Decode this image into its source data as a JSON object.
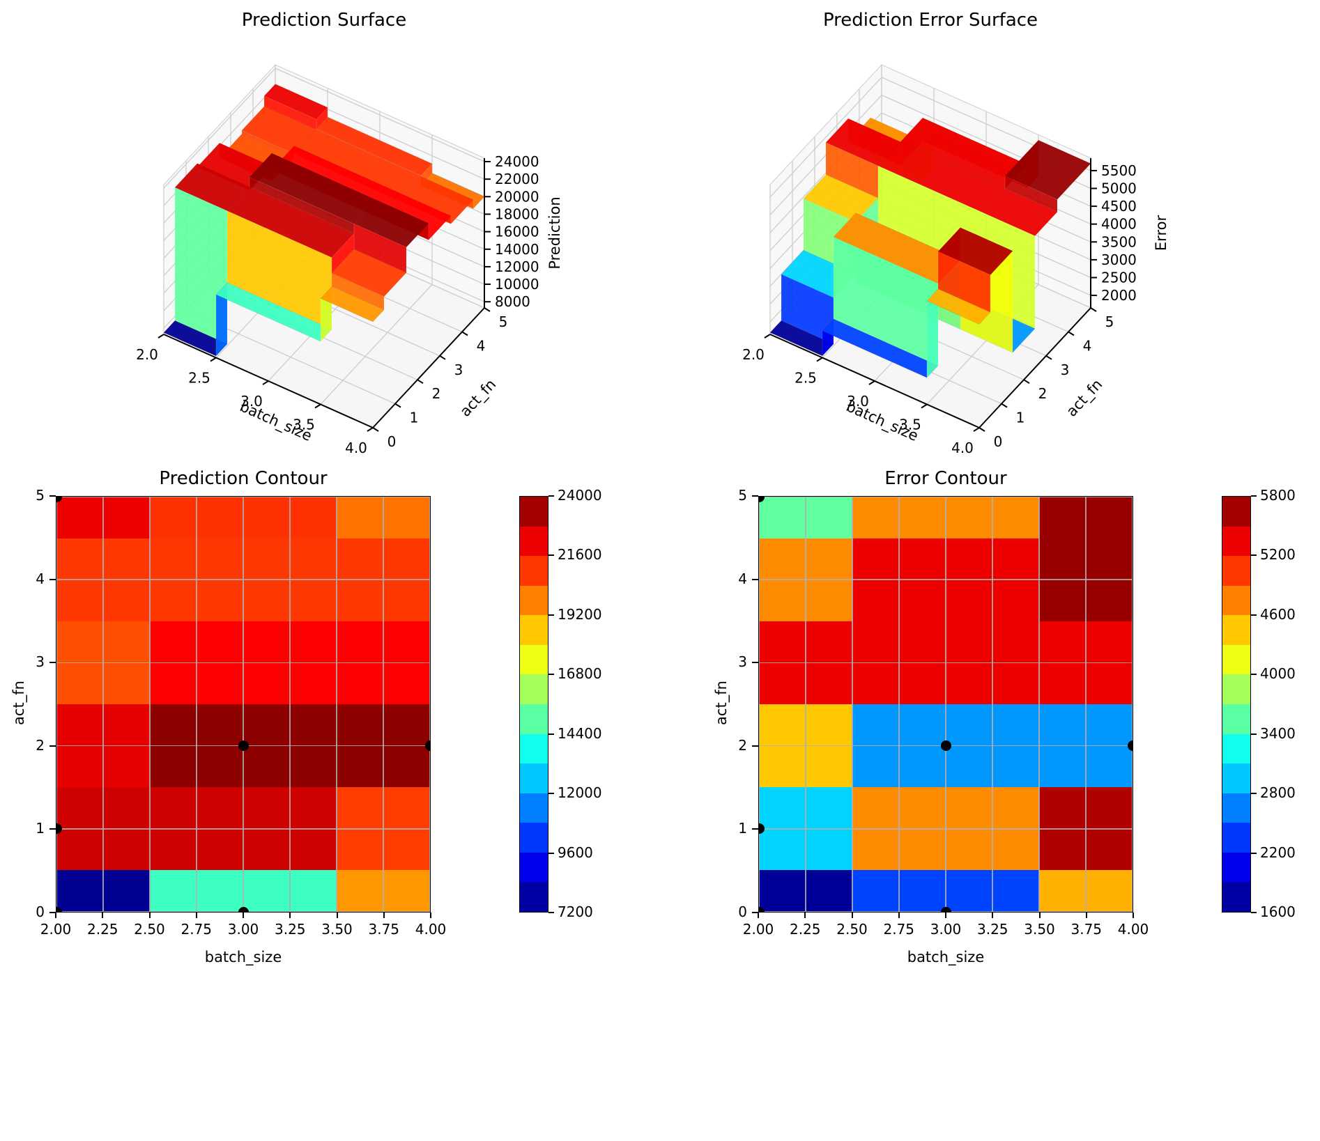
{
  "figure": {
    "background": "#ffffff",
    "grid_color": "#b0b0b0",
    "pane_color": "#f5f5f5",
    "pane_grid_color": "#cdcdcd",
    "marker_color": "#000000"
  },
  "chart_data": [
    {
      "id": "pred_surface",
      "type": "surface3d",
      "title": "Prediction Surface",
      "xlabel": "batch_size",
      "ylabel": "act_fn",
      "zlabel": "Prediction",
      "colormap": "jet",
      "x": [
        2,
        3,
        4
      ],
      "y": [
        0,
        1,
        2,
        3,
        4,
        5
      ],
      "z": [
        [
          7500,
          14500,
          19400
        ],
        [
          22700,
          22700,
          20900
        ],
        [
          22300,
          23800,
          23800
        ],
        [
          20600,
          21900,
          21900
        ],
        [
          21000,
          21000,
          21000
        ],
        [
          22200,
          21100,
          20000
        ]
      ],
      "xticks": [
        "2.0",
        "2.5",
        "3.0",
        "3.5",
        "4.0"
      ],
      "yticks": [
        "0",
        "1",
        "2",
        "3",
        "4",
        "5"
      ],
      "zticks": [
        8000,
        10000,
        12000,
        14000,
        16000,
        18000,
        20000,
        22000,
        24000
      ],
      "vmin": 7200,
      "vmax": 24000,
      "zlim": [
        7300,
        24400
      ]
    },
    {
      "id": "err_surface",
      "type": "surface3d",
      "title": "Prediction Error Surface",
      "xlabel": "batch_size",
      "ylabel": "act_fn",
      "zlabel": "Error",
      "colormap": "jet",
      "x": [
        2,
        3,
        4
      ],
      "y": [
        0,
        1,
        2,
        3,
        4,
        5
      ],
      "z": [
        [
          1700,
          2400,
          4550
        ],
        [
          3000,
          4700,
          5600
        ],
        [
          4450,
          2750,
          2750
        ],
        [
          5350,
          5350,
          5350
        ],
        [
          4700,
          5350,
          5700
        ],
        [
          3570,
          4700,
          5700
        ]
      ],
      "xticks": [
        "2.0",
        "2.5",
        "3.0",
        "3.5",
        "4.0"
      ],
      "yticks": [
        "0",
        "1",
        "2",
        "3",
        "4",
        "5"
      ],
      "zticks": [
        2000,
        2500,
        3000,
        3500,
        4000,
        4500,
        5000,
        5500
      ],
      "vmin": 1600,
      "vmax": 5800,
      "zlim": [
        1650,
        5850
      ]
    },
    {
      "id": "pred_contour",
      "type": "heatmap",
      "title": "Prediction Contour",
      "xlabel": "batch_size",
      "ylabel": "act_fn",
      "colormap": "jet",
      "levels": 14,
      "x": [
        2,
        3,
        4
      ],
      "y": [
        0,
        1,
        2,
        3,
        4,
        5
      ],
      "z": [
        [
          7500,
          14500,
          19400
        ],
        [
          22700,
          22700,
          20900
        ],
        [
          22300,
          23800,
          23800
        ],
        [
          20600,
          21900,
          21900
        ],
        [
          21000,
          21000,
          21000
        ],
        [
          22200,
          21100,
          20000
        ]
      ],
      "xticks": [
        "2.00",
        "2.25",
        "2.50",
        "2.75",
        "3.00",
        "3.25",
        "3.50",
        "3.75",
        "4.00"
      ],
      "yticks": [
        "0",
        "1",
        "2",
        "3",
        "4",
        "5"
      ],
      "cbar_ticks": [
        7200,
        9600,
        12000,
        14400,
        16800,
        19200,
        21600,
        24000
      ],
      "vmin": 7200,
      "vmax": 24000,
      "sample_points": [
        [
          2,
          0
        ],
        [
          3,
          0
        ],
        [
          2,
          1
        ],
        [
          3,
          2
        ],
        [
          4,
          2
        ],
        [
          2,
          5
        ]
      ]
    },
    {
      "id": "err_contour",
      "type": "heatmap",
      "title": "Error Contour",
      "xlabel": "batch_size",
      "ylabel": "act_fn",
      "colormap": "jet",
      "levels": 14,
      "x": [
        2,
        3,
        4
      ],
      "y": [
        0,
        1,
        2,
        3,
        4,
        5
      ],
      "z": [
        [
          1700,
          2400,
          4550
        ],
        [
          3000,
          4700,
          5600
        ],
        [
          4450,
          2750,
          2750
        ],
        [
          5350,
          5350,
          5350
        ],
        [
          4700,
          5350,
          5700
        ],
        [
          3570,
          4700,
          5700
        ]
      ],
      "xticks": [
        "2.00",
        "2.25",
        "2.50",
        "2.75",
        "3.00",
        "3.25",
        "3.50",
        "3.75",
        "4.00"
      ],
      "yticks": [
        "0",
        "1",
        "2",
        "3",
        "4",
        "5"
      ],
      "cbar_ticks": [
        1600,
        2200,
        2800,
        3400,
        4000,
        4600,
        5200,
        5800
      ],
      "vmin": 1600,
      "vmax": 5800,
      "sample_points": [
        [
          2,
          0
        ],
        [
          3,
          0
        ],
        [
          2,
          1
        ],
        [
          3,
          2
        ],
        [
          4,
          2
        ],
        [
          2,
          5
        ]
      ]
    }
  ]
}
